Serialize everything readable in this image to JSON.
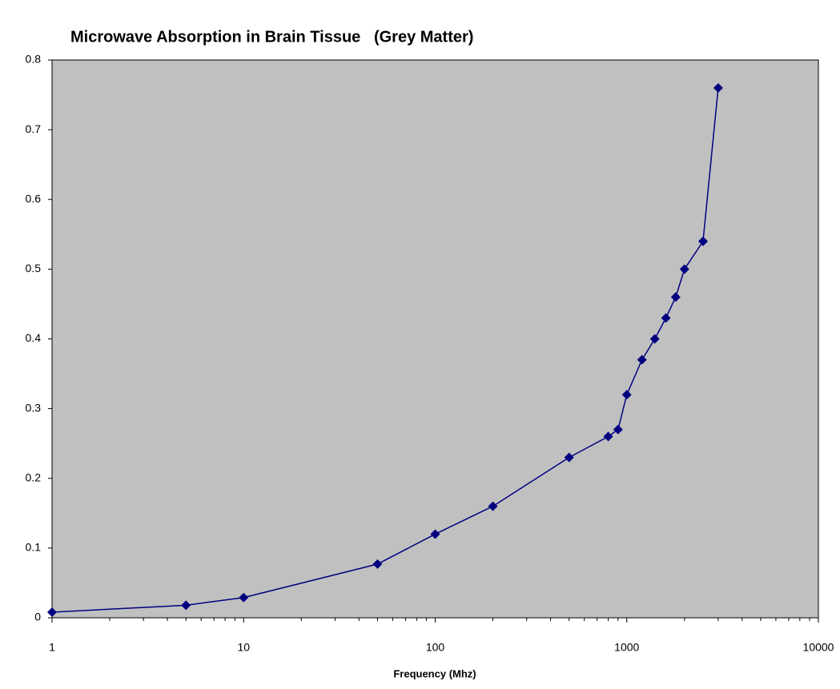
{
  "chart_data": {
    "type": "line",
    "title": "Microwave Absorption in Brain Tissue   (Grey Matter)",
    "x_label": "Frequency (Mhz)",
    "x": [
      1,
      5,
      10,
      50,
      100,
      200,
      500,
      800,
      900,
      1000,
      1200,
      1400,
      1600,
      1800,
      2000,
      2500,
      3000
    ],
    "series": [
      {
        "name": "Grey Matter",
        "color": "#000080",
        "values": [
          0.008,
          0.018,
          0.029,
          0.077,
          0.12,
          0.16,
          0.23,
          0.26,
          0.27,
          0.32,
          0.37,
          0.4,
          0.43,
          0.46,
          0.5,
          0.54,
          0.76
        ]
      }
    ],
    "xscale": "log",
    "xlim": [
      1,
      10000
    ],
    "xticks": [
      1,
      10,
      100,
      1000,
      10000
    ],
    "ylim": [
      0,
      0.8
    ],
    "yticks": [
      0,
      0.1,
      0.2,
      0.3,
      0.4,
      0.5,
      0.6,
      0.7,
      0.8
    ],
    "plot_background": "#c0c0c0",
    "grid": false
  }
}
